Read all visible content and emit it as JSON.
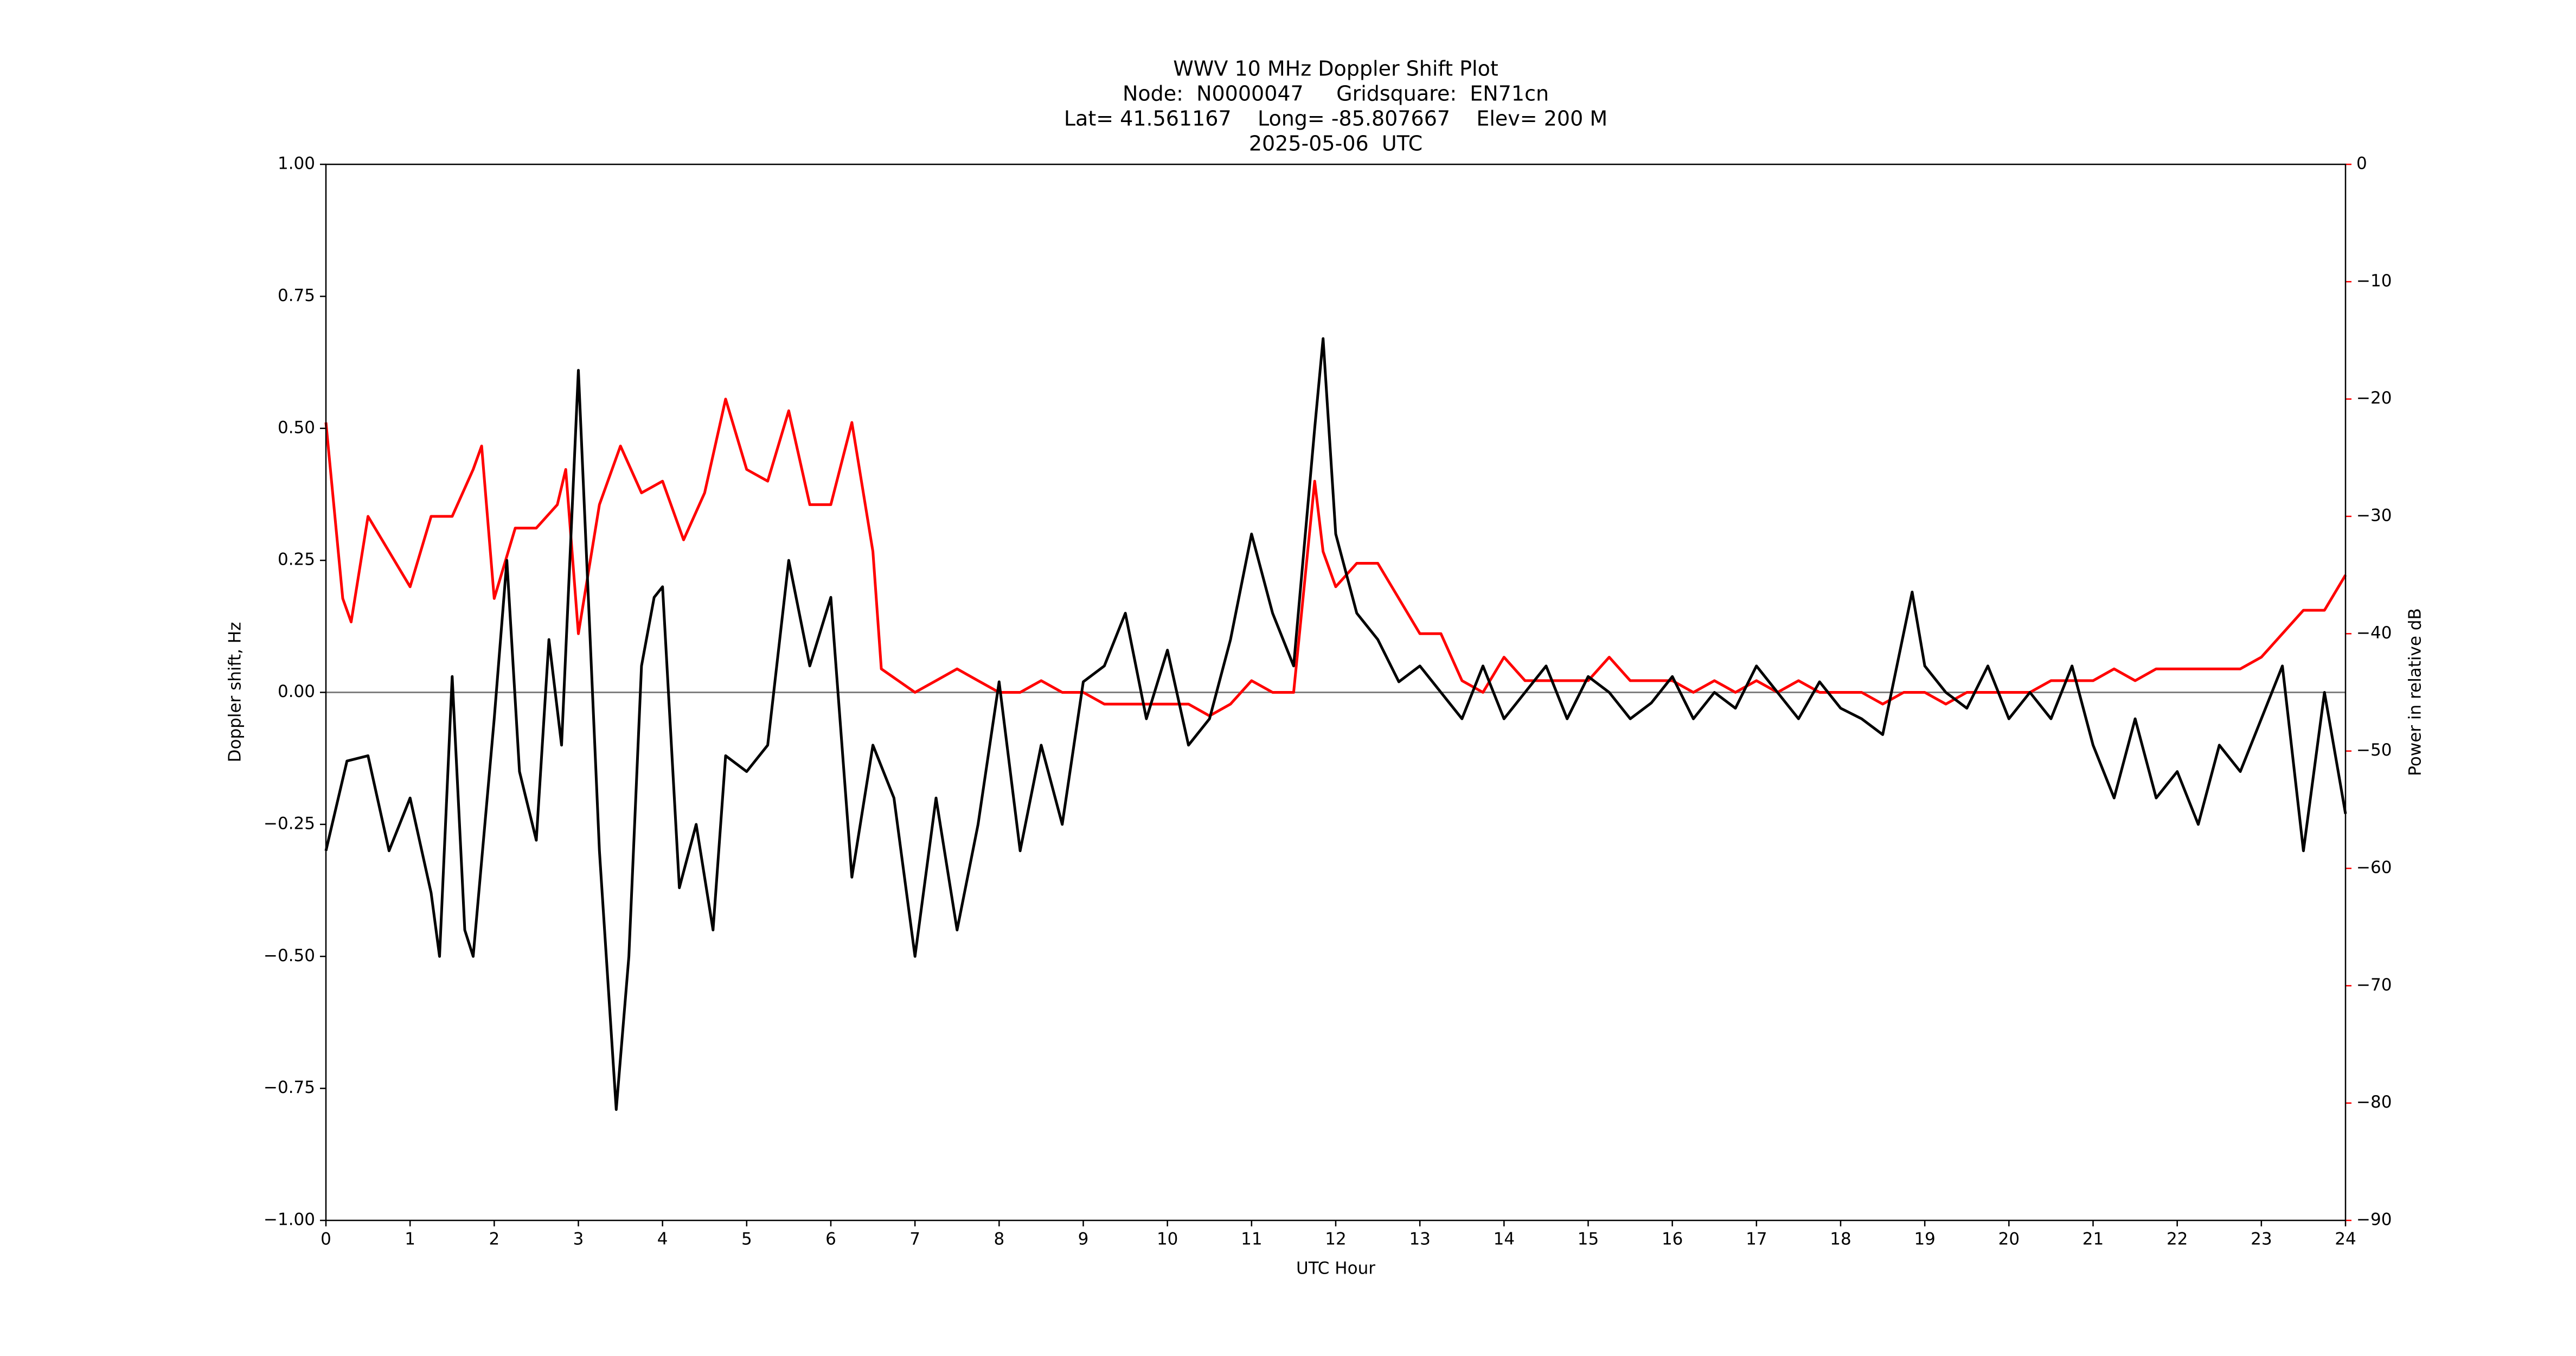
{
  "chart_data": {
    "type": "line",
    "title": "WWV 10 MHz Doppler Shift Plot",
    "subtitle": [
      "Node:  N0000047     Gridsquare:  EN71cn",
      "Lat= 41.561167    Long= -85.807667    Elev= 200 M",
      "2025-05-06  UTC"
    ],
    "xlabel": "UTC Hour",
    "ylabel": "Doppler shift, Hz",
    "y2label": "Power in relative dB",
    "y2color": "#ff0000",
    "xlim": [
      0,
      24
    ],
    "xticks": [
      0,
      1,
      2,
      3,
      4,
      5,
      6,
      7,
      8,
      9,
      10,
      11,
      12,
      13,
      14,
      15,
      16,
      17,
      18,
      19,
      20,
      21,
      22,
      23,
      24
    ],
    "ylim": [
      -1,
      1
    ],
    "yticks": [
      {
        "value": -1,
        "label": "−1.00"
      },
      {
        "value": -0.75,
        "label": "−0.75"
      },
      {
        "value": -0.5,
        "label": "−0.50"
      },
      {
        "value": -0.25,
        "label": "−0.25"
      },
      {
        "value": 0,
        "label": "0.00"
      },
      {
        "value": 0.25,
        "label": "0.25"
      },
      {
        "value": 0.5,
        "label": "0.50"
      },
      {
        "value": 0.75,
        "label": "0.75"
      },
      {
        "value": 1,
        "label": "1.00"
      }
    ],
    "y2lim": [
      -90,
      0
    ],
    "y2ticks": [
      {
        "value": -90,
        "label": "−90"
      },
      {
        "value": -80,
        "label": "−80"
      },
      {
        "value": -70,
        "label": "−70"
      },
      {
        "value": -60,
        "label": "−60"
      },
      {
        "value": -50,
        "label": "−50"
      },
      {
        "value": -40,
        "label": "−40"
      },
      {
        "value": -30,
        "label": "−30"
      },
      {
        "value": -20,
        "label": "−20"
      },
      {
        "value": -10,
        "label": "−10"
      },
      0
    ],
    "hline": 0,
    "series": [
      {
        "name": "Doppler shift",
        "color": "#000000",
        "x": [
          0,
          0.25,
          0.5,
          0.75,
          1,
          1.25,
          1.35,
          1.5,
          1.65,
          1.75,
          2,
          2.15,
          2.3,
          2.5,
          2.65,
          2.8,
          3,
          3.25,
          3.45,
          3.6,
          3.75,
          3.9,
          4,
          4.2,
          4.4,
          4.6,
          4.75,
          5,
          5.25,
          5.5,
          5.75,
          6,
          6.25,
          6.5,
          6.75,
          7,
          7.25,
          7.5,
          7.75,
          8,
          8.25,
          8.5,
          8.75,
          9,
          9.25,
          9.5,
          9.75,
          10,
          10.25,
          10.5,
          10.75,
          11,
          11.25,
          11.5,
          11.75,
          11.85,
          12,
          12.25,
          12.5,
          12.75,
          13,
          13.25,
          13.5,
          13.75,
          14,
          14.25,
          14.5,
          14.75,
          15,
          15.25,
          15.5,
          15.75,
          16,
          16.25,
          16.5,
          16.75,
          17,
          17.25,
          17.5,
          17.75,
          18,
          18.25,
          18.5,
          18.85,
          19,
          19.25,
          19.5,
          19.75,
          20,
          20.25,
          20.5,
          20.75,
          21,
          21.25,
          21.5,
          21.75,
          22,
          22.25,
          22.5,
          22.75,
          23,
          23.25,
          23.5,
          23.75,
          24
        ],
        "values": [
          -0.3,
          -0.13,
          -0.12,
          -0.3,
          -0.2,
          -0.38,
          -0.5,
          0.03,
          -0.45,
          -0.5,
          -0.05,
          0.25,
          -0.15,
          -0.28,
          0.1,
          -0.1,
          0.61,
          -0.3,
          -0.79,
          -0.5,
          0.05,
          0.18,
          0.2,
          -0.37,
          -0.25,
          -0.45,
          -0.12,
          -0.15,
          -0.1,
          0.25,
          0.05,
          0.18,
          -0.35,
          -0.1,
          -0.2,
          -0.5,
          -0.2,
          -0.45,
          -0.25,
          0.02,
          -0.3,
          -0.1,
          -0.25,
          0.02,
          0.05,
          0.15,
          -0.05,
          0.08,
          -0.1,
          -0.05,
          0.1,
          0.3,
          0.15,
          0.05,
          0.5,
          0.67,
          0.3,
          0.15,
          0.1,
          0.02,
          0.05,
          0,
          -0.05,
          0.05,
          -0.05,
          0,
          0.05,
          -0.05,
          0.03,
          0,
          -0.05,
          -0.02,
          0.03,
          -0.05,
          0,
          -0.03,
          0.05,
          0,
          -0.05,
          0.02,
          -0.03,
          -0.05,
          -0.08,
          0.19,
          0.05,
          0,
          -0.03,
          0.05,
          -0.05,
          0,
          -0.05,
          0.05,
          -0.1,
          -0.2,
          -0.05,
          -0.2,
          -0.15,
          -0.25,
          -0.1,
          -0.15,
          -0.05,
          0.05,
          -0.3,
          0,
          -0.23
        ]
      },
      {
        "name": "Power",
        "color": "#ff0000",
        "axis": "y2",
        "x": [
          0,
          0.2,
          0.3,
          0.5,
          0.75,
          1,
          1.25,
          1.5,
          1.75,
          1.85,
          2,
          2.25,
          2.5,
          2.75,
          2.85,
          3,
          3.25,
          3.5,
          3.75,
          4,
          4.25,
          4.5,
          4.75,
          5,
          5.25,
          5.5,
          5.75,
          6,
          6.25,
          6.5,
          6.6,
          7,
          7.25,
          7.5,
          7.75,
          8,
          8.25,
          8.5,
          8.75,
          9,
          9.25,
          9.5,
          9.75,
          10,
          10.25,
          10.5,
          10.75,
          11,
          11.25,
          11.5,
          11.75,
          11.85,
          12,
          12.25,
          12.5,
          12.75,
          13,
          13.25,
          13.5,
          13.75,
          14,
          14.25,
          14.5,
          14.75,
          15,
          15.25,
          15.5,
          15.75,
          16,
          16.25,
          16.5,
          16.75,
          17,
          17.25,
          17.5,
          17.75,
          18,
          18.25,
          18.5,
          18.75,
          19,
          19.25,
          19.5,
          19.75,
          20,
          20.25,
          20.5,
          20.75,
          21,
          21.25,
          21.5,
          21.75,
          22,
          22.25,
          22.5,
          22.75,
          23,
          23.25,
          23.5,
          23.75,
          24
        ],
        "values": [
          -22,
          -37,
          -39,
          -30,
          -33,
          -36,
          -30,
          -30,
          -26,
          -24,
          -37,
          -31,
          -31,
          -29,
          -26,
          -40,
          -29,
          -24,
          -28,
          -27,
          -32,
          -28,
          -20,
          -26,
          -27,
          -21,
          -29,
          -29,
          -22,
          -33,
          -43,
          -45,
          -44,
          -43,
          -44,
          -45,
          -45,
          -44,
          -45,
          -45,
          -46,
          -46,
          -46,
          -46,
          -46,
          -47,
          -46,
          -44,
          -45,
          -45,
          -27,
          -33,
          -36,
          -34,
          -34,
          -37,
          -40,
          -40,
          -44,
          -45,
          -42,
          -44,
          -44,
          -44,
          -44,
          -42,
          -44,
          -44,
          -44,
          -45,
          -44,
          -45,
          -44,
          -45,
          -44,
          -45,
          -45,
          -45,
          -46,
          -45,
          -45,
          -46,
          -45,
          -45,
          -45,
          -45,
          -44,
          -44,
          -44,
          -43,
          -44,
          -43,
          -43,
          -43,
          -43,
          -43,
          -42,
          -40,
          -38,
          -38,
          -35
        ]
      }
    ]
  }
}
